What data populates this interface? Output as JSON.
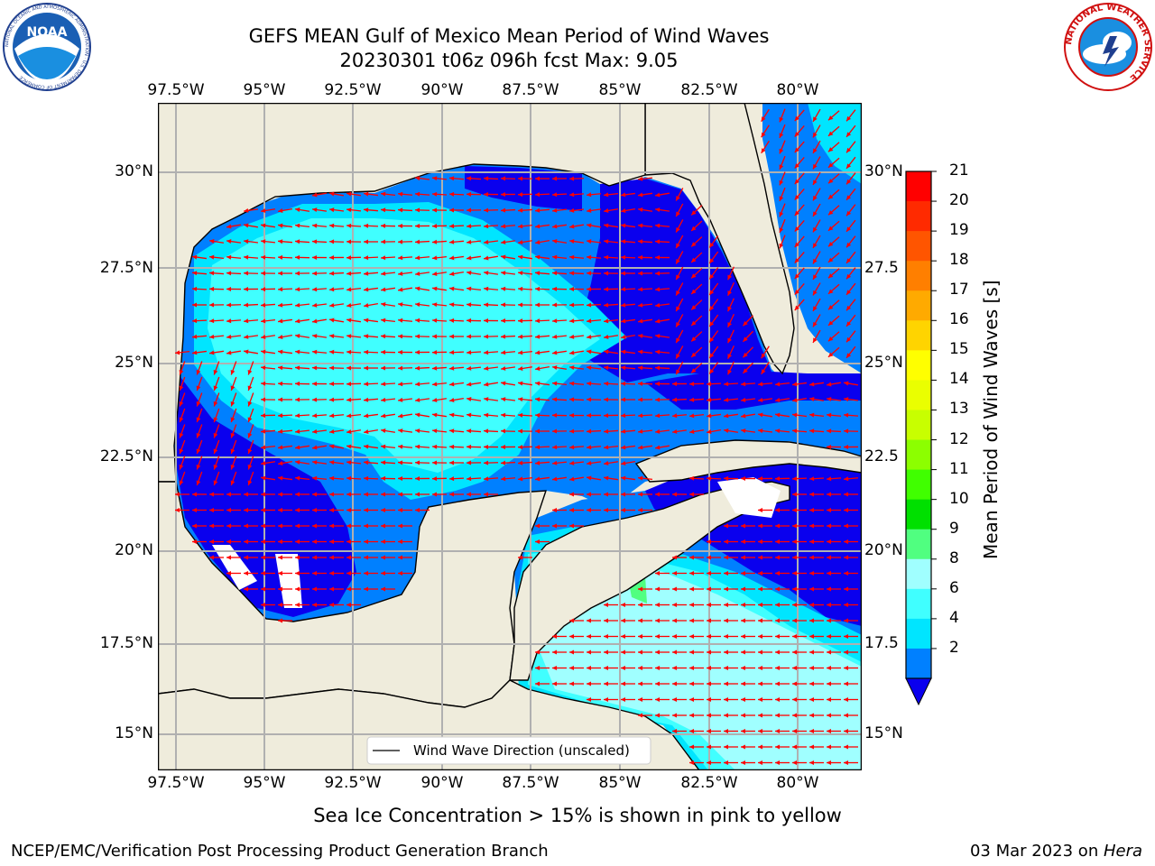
{
  "header": {
    "title_line1": "GEFS MEAN Gulf of Mexico Mean Period of Wind Waves",
    "title_line2": "20230301 t06z 096h fcst   Max: 9.05"
  },
  "logos": {
    "left_logo_text": "NOAA",
    "left_logo_ring_text": "NATIONAL OCEANIC AND ATMOSPHERIC ADMINISTRATION · U.S. DEPARTMENT OF COMMERCE",
    "right_logo_ring_text": "NATIONAL WEATHER SERVICE"
  },
  "map": {
    "lon_labels": [
      "97.5°W",
      "95°W",
      "92.5°W",
      "90°W",
      "87.5°W",
      "85°W",
      "82.5°W",
      "80°W"
    ],
    "lat_labels_left": [
      "30°N",
      "27.5°N",
      "25°N",
      "22.5°N",
      "20°N",
      "17.5°N",
      "15°N"
    ],
    "lat_labels_right": [
      "30°N",
      "27.5",
      "25°N",
      "22.5",
      "20°N",
      "17.5",
      "15°N"
    ],
    "legend_label": "Wind Wave Direction (unscaled)",
    "max_value_region": "9-10 band near 85°W, 19°N",
    "colors": {
      "land": "#efecdc",
      "ocean_white": "#ffffff",
      "band_2_4": "#0080ff",
      "band_4_6": "#00e5ff",
      "band_6_8": "#40ffff",
      "band_8_9": "#a0ffff",
      "band_9_10": "#50ff80",
      "deep_blue": "#0a00ee",
      "arrow": "#ff0000",
      "grid": "#b0b0b0"
    }
  },
  "colorbar": {
    "title": "Mean Period of Wind Waves [s]",
    "levels": [
      "21",
      "20",
      "19",
      "18",
      "17",
      "16",
      "15",
      "14",
      "13",
      "12",
      "11",
      "10",
      "9",
      "8",
      "6",
      "4",
      "2"
    ],
    "band_colors": [
      "#ff0000",
      "#ff2a00",
      "#ff5500",
      "#ff7f00",
      "#ffaa00",
      "#ffd400",
      "#ffff00",
      "#eaff00",
      "#c8ff00",
      "#8cff00",
      "#40ff00",
      "#00e000",
      "#50ff80",
      "#a0ffff",
      "#40ffff",
      "#00e5ff",
      "#0080ff"
    ],
    "extend_color": "#0a00ee"
  },
  "footer": {
    "note": "Sea Ice Concentration > 15% is shown in pink to yellow",
    "credit": "NCEP/EMC/Verification Post Processing Product Generation Branch",
    "date": "03 Mar 2023 on ",
    "machine": "Hera"
  }
}
